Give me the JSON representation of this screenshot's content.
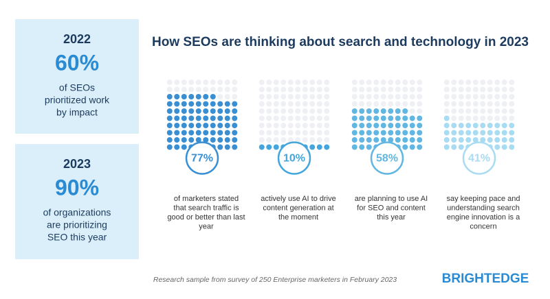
{
  "chart_data": {
    "type": "waffle",
    "title": "How SEOs are thinking about search and technology in 2023",
    "side_panels": [
      {
        "year": "2022",
        "stat": "60%",
        "text": [
          "of SEOs",
          "prioritized work",
          "by impact"
        ]
      },
      {
        "year": "2023",
        "stat": "90%",
        "text": [
          "of organizations",
          "are prioritizing",
          "SEO this year"
        ]
      }
    ],
    "series": [
      {
        "values": [
          77
        ],
        "value_labels": [
          "77%"
        ],
        "color": "#3a8fd2",
        "caption": [
          "of marketers stated",
          "that search traffic is",
          "good or better than last",
          "year"
        ]
      },
      {
        "values": [
          10
        ],
        "value_labels": [
          "10%"
        ],
        "color": "#44a6dc",
        "caption": [
          "actively use AI to drive",
          "content generation at",
          "the moment"
        ]
      },
      {
        "values": [
          58
        ],
        "value_labels": [
          "58%"
        ],
        "color": "#62b6e2",
        "caption": [
          "are planning to use AI",
          "for SEO and content",
          "this year"
        ]
      },
      {
        "values": [
          41
        ],
        "value_labels": [
          "41%"
        ],
        "color": "#a9dcf3",
        "caption": [
          "say keeping pace and",
          "understanding search",
          "engine innovation is a",
          "concern"
        ]
      }
    ],
    "footnote": "Research sample from survey of 250 Enterprise marketers in February 2023",
    "logo": "BRIGHTEDGE"
  }
}
